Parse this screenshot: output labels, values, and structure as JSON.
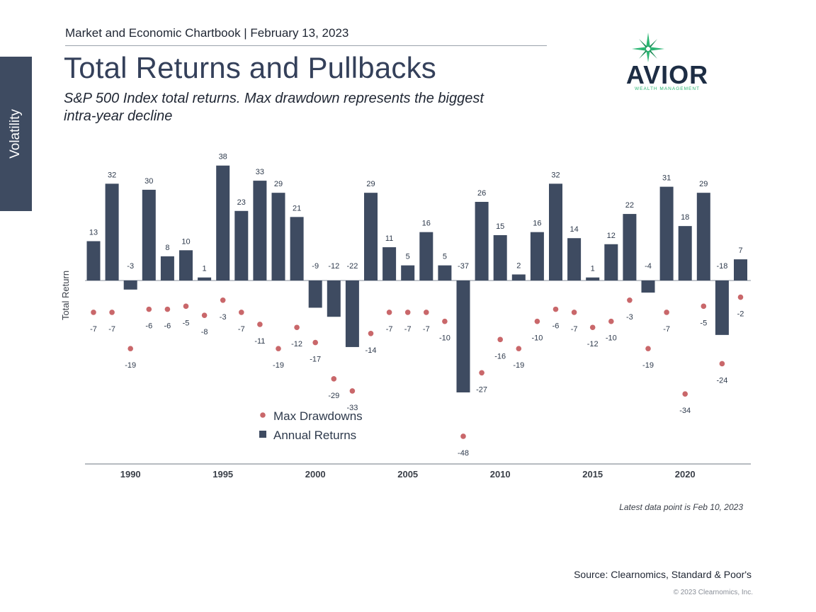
{
  "header": {
    "chartbook": "Market and Economic Chartbook | February 13, 2023",
    "title": "Total Returns and Pullbacks",
    "subtitle": "S&P 500 Index total returns. Max drawdown represents the biggest intra-year decline"
  },
  "side_tab": {
    "label": "Volatility"
  },
  "logo": {
    "name": "AVIOR",
    "tagline": "WEALTH MANAGEMENT",
    "icon": "compass-star-icon"
  },
  "footer": {
    "note": "Latest data point is Feb 10, 2023",
    "source": "Source: Clearnomics, Standard & Poor's",
    "copyright": "© 2023 Clearnomics, Inc."
  },
  "colors": {
    "bar": "#3e4b61",
    "dot": "#c9676a",
    "sidebar": "#3e4b61",
    "logo_navy": "#1d2d44",
    "logo_green": "#2bb673"
  },
  "chart_data": {
    "type": "bar",
    "ylabel": "Total Return",
    "xlabel": "",
    "x": [
      1988,
      1989,
      1990,
      1991,
      1992,
      1993,
      1994,
      1995,
      1996,
      1997,
      1998,
      1999,
      2000,
      2001,
      2002,
      2003,
      2004,
      2005,
      2006,
      2007,
      2008,
      2009,
      2010,
      2011,
      2012,
      2013,
      2014,
      2015,
      2016,
      2017,
      2018,
      2019,
      2020,
      2021,
      2022,
      2023
    ],
    "x_ticks": [
      1990,
      1995,
      2000,
      2005,
      2010,
      2015,
      2020
    ],
    "ylim": [
      -48,
      38
    ],
    "grid": false,
    "legend": "bottom-left",
    "series": [
      {
        "name": "Annual Returns",
        "kind": "bar",
        "values": [
          13,
          32,
          -3,
          30,
          8,
          10,
          1,
          38,
          23,
          33,
          29,
          21,
          -9,
          -12,
          -22,
          29,
          11,
          5,
          16,
          5,
          -37,
          26,
          15,
          2,
          16,
          32,
          14,
          1,
          12,
          22,
          -4,
          31,
          18,
          29,
          -18,
          7
        ]
      },
      {
        "name": "Max Drawdowns",
        "kind": "scatter",
        "values": [
          -7,
          -7,
          -19,
          -6,
          -6,
          -5,
          -8,
          -3,
          -7,
          -11,
          -19,
          -12,
          -17,
          -29,
          -33,
          -14,
          -7,
          -7,
          -7,
          -10,
          -48,
          -27,
          -16,
          -19,
          -10,
          -6,
          -7,
          -12,
          -10,
          -3,
          -19,
          -7,
          -34,
          -5,
          -24,
          -2
        ]
      }
    ]
  }
}
